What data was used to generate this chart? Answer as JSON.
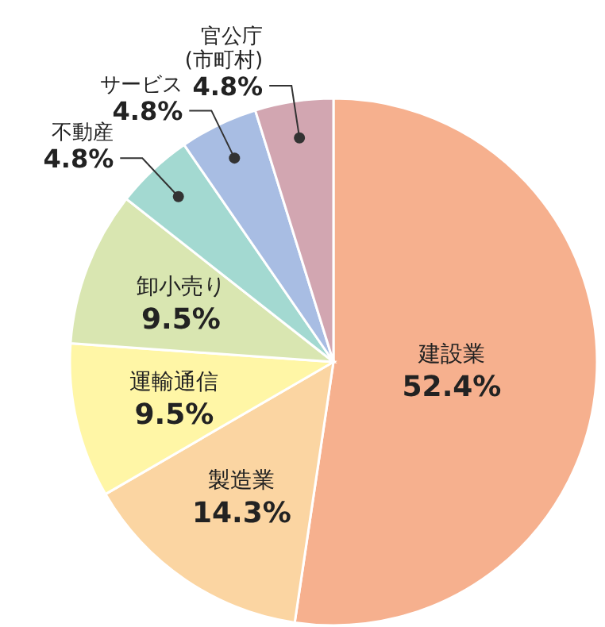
{
  "chart_data": {
    "type": "pie",
    "categories": [
      "建設業",
      "製造業",
      "運輸通信",
      "卸小売り",
      "不動産",
      "サービス",
      "官公庁\n(市町村)"
    ],
    "values": [
      52.4,
      14.3,
      9.5,
      9.5,
      4.8,
      4.8,
      4.8
    ],
    "colors": [
      "#f6b08e",
      "#fbd5a2",
      "#fff6a6",
      "#d9e6b1",
      "#a3d9d1",
      "#a8bde3",
      "#d2a6b1"
    ],
    "value_labels": [
      "52.4%",
      "14.3%",
      "9.5%",
      "9.5%",
      "4.8%",
      "4.8%",
      "4.8%"
    ]
  }
}
